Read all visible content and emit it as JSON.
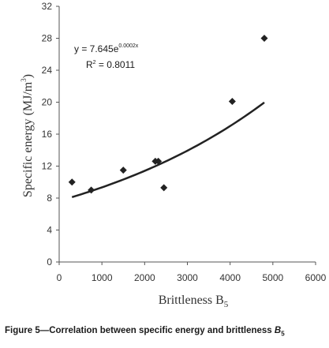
{
  "chart_data": {
    "type": "scatter",
    "xlabel": {
      "text": "Brittleness B",
      "subscript": "5"
    },
    "ylabel": {
      "text": "Specific energy (MJ/m",
      "superscript": "3",
      "suffix": ")"
    },
    "xlim": [
      0,
      6000
    ],
    "ylim": [
      0,
      32
    ],
    "xticks": [
      "0",
      "1000",
      "2000",
      "3000",
      "4000",
      "5000",
      "6000"
    ],
    "yticks": [
      "0",
      "4",
      "8",
      "12",
      "16",
      "20",
      "24",
      "28",
      "32"
    ],
    "x_tick_values": [
      0,
      1000,
      2000,
      3000,
      4000,
      5000,
      6000
    ],
    "y_tick_values": [
      0,
      4,
      8,
      12,
      16,
      20,
      24,
      28,
      32
    ],
    "grid": false,
    "series": [
      {
        "marker": "diamond",
        "color": "#222222",
        "points": [
          {
            "x": 300,
            "y": 10.0
          },
          {
            "x": 750,
            "y": 9.0
          },
          {
            "x": 1500,
            "y": 11.5
          },
          {
            "x": 2250,
            "y": 12.6
          },
          {
            "x": 2320,
            "y": 12.6
          },
          {
            "x": 2450,
            "y": 9.3
          },
          {
            "x": 4050,
            "y": 20.1
          },
          {
            "x": 4800,
            "y": 28.0
          }
        ]
      }
    ],
    "trendline": {
      "type": "exponential",
      "a": 7.645,
      "b": 0.0002,
      "x_range": [
        300,
        4800
      ],
      "color": "#222222"
    },
    "annotation": {
      "equation_prefix": "y = 7.645e",
      "equation_exponent": "0.0002x",
      "r2_prefix": "R",
      "r2_sup": "2",
      "r2_value": " = 0.8011"
    }
  },
  "caption": {
    "text": "Figure 5—Correlation between specific energy and brittleness ",
    "var": "B",
    "sub": "5"
  }
}
